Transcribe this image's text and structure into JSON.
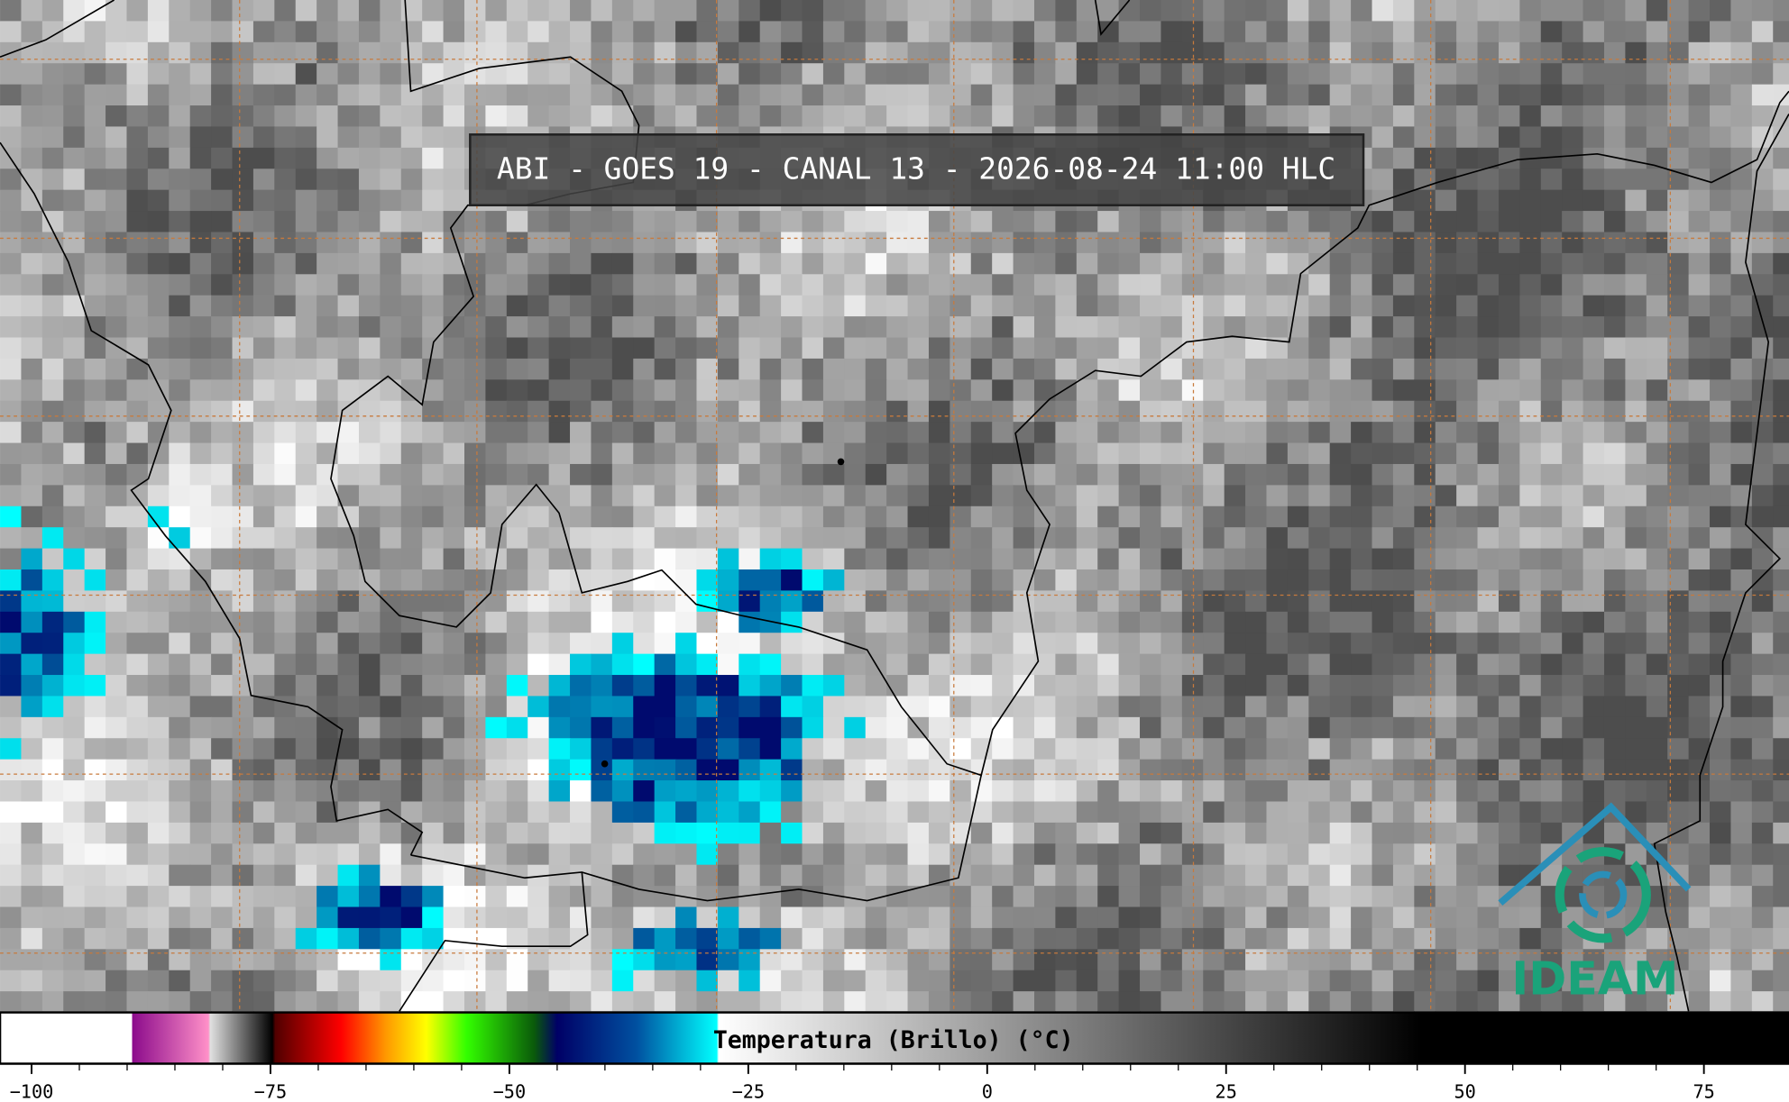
{
  "header": {
    "title": "ABI - GOES 19 - CANAL 13 - 2026-08-24 11:00 HLC"
  },
  "logo": {
    "label": "IDEAM"
  },
  "colorbar": {
    "label": "Temperatura (Brillo) (°C)",
    "lim": [
      -103.3,
      83.9
    ],
    "ticks": [
      {
        "value": -100,
        "label": "−100"
      },
      {
        "value": -75,
        "label": "−75"
      },
      {
        "value": -50,
        "label": "−50"
      },
      {
        "value": -25,
        "label": "−25"
      },
      0,
      25,
      50,
      75
    ],
    "stops": [
      {
        "value": -103.3,
        "color": "#ffffff"
      },
      {
        "value": -89.5,
        "color": "#ffffff"
      },
      {
        "value": -89.5,
        "color": "#8b0a8b"
      },
      {
        "value": -81.5,
        "color": "#ff90c8"
      },
      {
        "value": -81.3,
        "color": "#e0e0e0"
      },
      {
        "value": -74.8,
        "color": "#000000"
      },
      {
        "value": -74.5,
        "color": "#500000"
      },
      {
        "value": -67.6,
        "color": "#ff0000"
      },
      {
        "value": -62.9,
        "color": "#ff9900"
      },
      {
        "value": -58.7,
        "color": "#ffff00"
      },
      {
        "value": -54.5,
        "color": "#33ff00"
      },
      {
        "value": -47.4,
        "color": "#0a5a0a"
      },
      {
        "value": -45,
        "color": "#000066"
      },
      {
        "value": -36.7,
        "color": "#0050a0"
      },
      {
        "value": -28.3,
        "color": "#00ffff"
      },
      {
        "value": -28.1,
        "color": "#ffffff"
      },
      {
        "value": 45.5,
        "color": "#000000"
      },
      {
        "value": 83.9,
        "color": "#000000"
      }
    ]
  }
}
